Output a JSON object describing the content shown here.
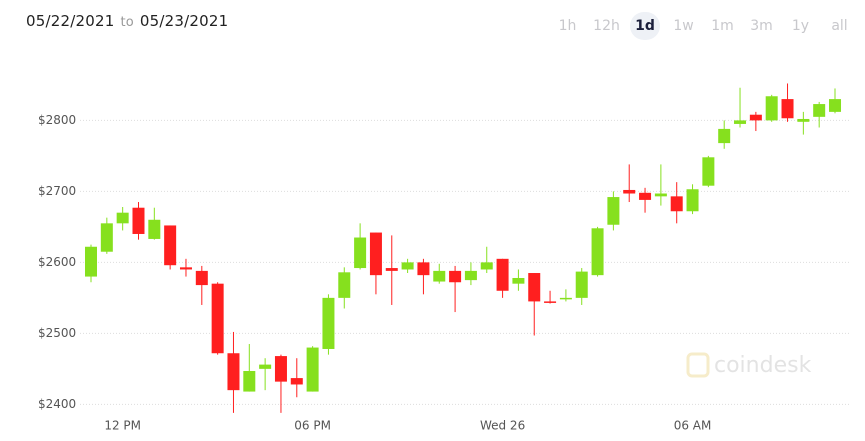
{
  "header": {
    "start_date": "05/22/2021",
    "to": "to",
    "end_date": "05/23/2021"
  },
  "range_buttons": [
    {
      "label": "1h",
      "selected": false
    },
    {
      "label": "12h",
      "selected": false
    },
    {
      "label": "1d",
      "selected": true
    },
    {
      "label": "1w",
      "selected": false
    },
    {
      "label": "1m",
      "selected": false
    },
    {
      "label": "3m",
      "selected": false
    },
    {
      "label": "1y",
      "selected": false
    },
    {
      "label": "all",
      "selected": false
    }
  ],
  "watermark": "coindesk",
  "chart_data": {
    "type": "candlestick",
    "categories": [
      null,
      null,
      "12 PM",
      null,
      null,
      null,
      null,
      null,
      null,
      null,
      null,
      null,
      null,
      null,
      "06 PM",
      null,
      null,
      null,
      null,
      null,
      null,
      null,
      null,
      null,
      null,
      null,
      "Wed 26",
      null,
      null,
      null,
      null,
      null,
      null,
      null,
      null,
      null,
      null,
      null,
      "06 AM",
      null,
      null,
      null,
      null,
      null,
      null,
      null,
      null,
      null
    ],
    "open": [
      2580,
      2615,
      2655,
      2677,
      2633,
      2652,
      2593,
      2588,
      2570,
      2472,
      2418,
      2450,
      2468,
      2437,
      2418,
      2478,
      2550,
      2592,
      2642,
      2592,
      2590,
      2600,
      2573,
      2588,
      2575,
      2590,
      2605,
      2570,
      2585,
      2545,
      2548,
      2550,
      2582,
      2653,
      2702,
      2698,
      2693,
      2693,
      2672,
      2708,
      2768,
      2795,
      2808,
      2800,
      2830,
      2798,
      2805,
      2812
    ],
    "high": [
      2625,
      2663,
      2678,
      2685,
      2677,
      2652,
      2605,
      2595,
      2572,
      2502,
      2485,
      2465,
      2470,
      2465,
      2482,
      2555,
      2593,
      2655,
      2642,
      2638,
      2605,
      2605,
      2598,
      2595,
      2600,
      2622,
      2605,
      2590,
      2585,
      2560,
      2562,
      2592,
      2650,
      2700,
      2738,
      2705,
      2738,
      2713,
      2710,
      2750,
      2800,
      2846,
      2812,
      2836,
      2852,
      2812,
      2826,
      2845
    ],
    "low": [
      2572,
      2612,
      2645,
      2632,
      2632,
      2590,
      2580,
      2540,
      2470,
      2388,
      2418,
      2420,
      2388,
      2410,
      2418,
      2470,
      2535,
      2590,
      2555,
      2540,
      2585,
      2555,
      2570,
      2530,
      2568,
      2585,
      2550,
      2560,
      2497,
      2542,
      2545,
      2540,
      2580,
      2645,
      2685,
      2670,
      2680,
      2655,
      2668,
      2706,
      2760,
      2790,
      2785,
      2798,
      2798,
      2780,
      2790,
      2810
    ],
    "close": [
      2622,
      2655,
      2670,
      2640,
      2660,
      2596,
      2590,
      2568,
      2472,
      2420,
      2447,
      2456,
      2432,
      2428,
      2480,
      2550,
      2586,
      2635,
      2582,
      2588,
      2600,
      2582,
      2588,
      2572,
      2588,
      2600,
      2560,
      2578,
      2545,
      2543,
      2550,
      2587,
      2648,
      2692,
      2697,
      2688,
      2697,
      2672,
      2703,
      2748,
      2788,
      2800,
      2800,
      2834,
      2803,
      2802,
      2823,
      2830
    ],
    "up_color": "#86e01e",
    "down_color": "#ff1f1f",
    "ylim": [
      2385,
      2900
    ],
    "yticks": [
      {
        "value": 2400,
        "label": "$2400"
      },
      {
        "value": 2500,
        "label": "$2500"
      },
      {
        "value": 2600,
        "label": "$2600"
      },
      {
        "value": 2700,
        "label": "$2700"
      },
      {
        "value": 2800,
        "label": "$2800"
      }
    ],
    "grid": true
  }
}
